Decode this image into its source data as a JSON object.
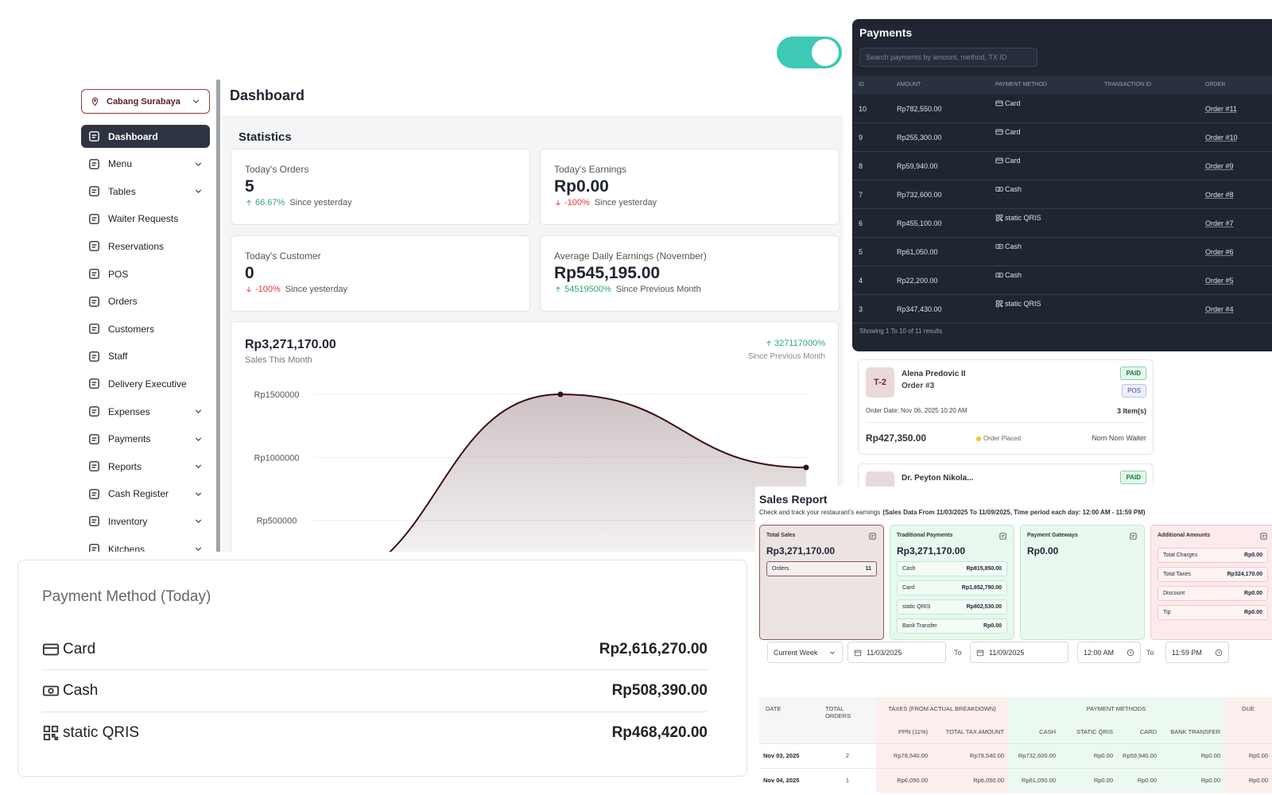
{
  "toggle": {
    "on": true
  },
  "sidebar": {
    "branch": "Cabang Surabaya",
    "items": [
      {
        "label": "Dashboard",
        "active": true,
        "submenu": false
      },
      {
        "label": "Menu",
        "active": false,
        "submenu": true
      },
      {
        "label": "Tables",
        "active": false,
        "submenu": true
      },
      {
        "label": "Waiter Requests",
        "active": false,
        "submenu": false
      },
      {
        "label": "Reservations",
        "active": false,
        "submenu": false
      },
      {
        "label": "POS",
        "active": false,
        "submenu": false
      },
      {
        "label": "Orders",
        "active": false,
        "submenu": false
      },
      {
        "label": "Customers",
        "active": false,
        "submenu": false
      },
      {
        "label": "Staff",
        "active": false,
        "submenu": false
      },
      {
        "label": "Delivery Executive",
        "active": false,
        "submenu": false
      },
      {
        "label": "Expenses",
        "active": false,
        "submenu": true
      },
      {
        "label": "Payments",
        "active": false,
        "submenu": true
      },
      {
        "label": "Reports",
        "active": false,
        "submenu": true
      },
      {
        "label": "Cash Register",
        "active": false,
        "submenu": true
      },
      {
        "label": "Inventory",
        "active": false,
        "submenu": true
      },
      {
        "label": "Kitchens",
        "active": false,
        "submenu": true
      }
    ]
  },
  "dashboard": {
    "title": "Dashboard",
    "section": "Statistics",
    "stats": [
      {
        "label": "Today's Orders",
        "value": 5,
        "change": "66.67%",
        "direction": "up",
        "note": "Since yesterday"
      },
      {
        "label": "Today's Earnings",
        "value": "Rp0.00",
        "change": "-100%",
        "direction": "down",
        "note": "Since yesterday"
      },
      {
        "label": "Today's Customer",
        "value": 0,
        "change": "-100%",
        "direction": "down",
        "note": "Since yesterday"
      },
      {
        "label": "Average Daily Earnings (November)",
        "value": "Rp545,195.00",
        "change": "54519500%",
        "direction": "up",
        "note": "Since Previous Month"
      }
    ]
  },
  "sales_chart": {
    "type": "line",
    "total": "Rp3,271,170.00",
    "caption": "Sales This Month",
    "change": "327117000%",
    "change_note": "Since Previous Month",
    "color": "#3a0d12",
    "ylim": [
      0,
      1500000
    ],
    "yticks": [
      {
        "value": 500000,
        "label": "Rp500000"
      },
      {
        "value": 1000000,
        "label": "Rp1000000"
      },
      {
        "value": 1500000,
        "label": "Rp1500000"
      }
    ],
    "values": [
      0,
      1500000,
      920000
    ]
  },
  "payments": {
    "title": "Payments",
    "search_placeholder": "Search payments by amount, method, TX ID",
    "columns": [
      "ID",
      "AMOUNT",
      "PAYMENT METHOD",
      "TRANSACTION ID",
      "ORDER"
    ],
    "rows": [
      {
        "id": 10,
        "amount": "Rp782,550.00",
        "method": "Card",
        "icon": "card",
        "order": "Order #11"
      },
      {
        "id": 9,
        "amount": "Rp255,300.00",
        "method": "Card",
        "icon": "card",
        "order": "Order #10"
      },
      {
        "id": 8,
        "amount": "Rp59,940.00",
        "method": "Card",
        "icon": "card",
        "order": "Order #9"
      },
      {
        "id": 7,
        "amount": "Rp732,600.00",
        "method": "Cash",
        "icon": "cash",
        "order": "Order #8"
      },
      {
        "id": 6,
        "amount": "Rp455,100.00",
        "method": "static QRIS",
        "icon": "qris",
        "order": "Order #7"
      },
      {
        "id": 5,
        "amount": "Rp61,050.00",
        "method": "Cash",
        "icon": "cash",
        "order": "Order #6"
      },
      {
        "id": 4,
        "amount": "Rp22,200.00",
        "method": "Cash",
        "icon": "cash",
        "order": "Order #5"
      },
      {
        "id": 3,
        "amount": "Rp347,430.00",
        "method": "static QRIS",
        "icon": "qris",
        "order": "Order #4"
      }
    ],
    "footer": "Showing 1 To 10 of 11 results"
  },
  "orders": [
    {
      "table": "T-2",
      "customer": "Alena Predovic II",
      "order": "Order #3",
      "status": "PAID",
      "source": "POS",
      "date": "Order Date: Nov 06, 2025 10:20 AM",
      "items": "3 Item(s)",
      "amount": "Rp427,350.00",
      "state": "Order Placed",
      "waiter": "Nom Nom Waiter"
    },
    {
      "customer": "Dr. Peyton Nikola...",
      "status": "PAID"
    }
  ],
  "sales_report": {
    "title": "Sales Report",
    "subtitle": "Check and track your restaurant's earnings",
    "range_note": "(Sales Data From 11/03/2025 To 11/09/2025, Time period each day: 12:00 AM - 11:59 PM)",
    "cards": [
      {
        "title": "Total Sales",
        "total": "Rp3,271,170.00",
        "color": "#ece3e3",
        "border": "#8c5a5a",
        "rows": [
          {
            "label": "Orders",
            "value": "11"
          }
        ]
      },
      {
        "title": "Traditional Payments",
        "total": "Rp3,271,170.00",
        "color": "#e8f8ef",
        "border": "#bfe9d0",
        "rows": [
          {
            "label": "Cash",
            "value": "Rp815,850.00"
          },
          {
            "label": "Card",
            "value": "Rp1,652,790.00"
          },
          {
            "label": "static QRIS",
            "value": "Rp802,530.00"
          },
          {
            "label": "Bank Transfer",
            "value": "Rp0.00"
          }
        ]
      },
      {
        "title": "Payment Gateways",
        "total": "Rp0.00",
        "color": "#e8f8ef",
        "border": "#bfe9d0",
        "rows": []
      },
      {
        "title": "Additional Amounts",
        "color": "#fdeaec",
        "border": "#f6c4ca",
        "rows": [
          {
            "label": "Total Charges",
            "value": "Rp0.00"
          },
          {
            "label": "Total Taxes",
            "value": "Rp324,170.00"
          },
          {
            "label": "Discount",
            "value": "Rp0.00"
          },
          {
            "label": "Tip",
            "value": "Rp0.00"
          }
        ]
      }
    ],
    "filters": {
      "period": "Current Week",
      "start_date": "11/03/2025",
      "to": "To",
      "end_date": "11/09/2025",
      "start_time": "12:00 AM",
      "end_time": "11:59 PM"
    },
    "table": {
      "groups": [
        "DATE",
        "TOTAL ORDERS",
        "TAXES (FROM ACTUAL BREAKDOWN)",
        "PAYMENT METHODS",
        "DUE"
      ],
      "subheaders": [
        "PPN (11%)",
        "TOTAL TAX AMOUNT",
        "CASH",
        "STATIC QRIS",
        "CARD",
        "BANK TRANSFER"
      ],
      "rows": [
        [
          "Nov 03, 2025",
          2,
          "Rp78,540.00",
          "Rp78,540.00",
          "Rp732,600.00",
          "Rp0.00",
          "Rp59,940.00",
          "Rp0.00",
          "Rp0.00"
        ],
        [
          "Nov 04, 2025",
          1,
          "Rp6,050.00",
          "Rp6,050.00",
          "Rp61,050.00",
          "Rp0.00",
          "Rp0.00",
          "Rp0.00",
          "Rp0.00"
        ]
      ]
    }
  },
  "payment_method": {
    "title": "Payment Method (Today)",
    "rows": [
      {
        "label": "Card",
        "icon": "card",
        "amount": "Rp2,616,270.00"
      },
      {
        "label": "Cash",
        "icon": "cash",
        "amount": "Rp508,390.00"
      },
      {
        "label": "static QRIS",
        "icon": "qris",
        "amount": "Rp468,420.00"
      }
    ]
  }
}
